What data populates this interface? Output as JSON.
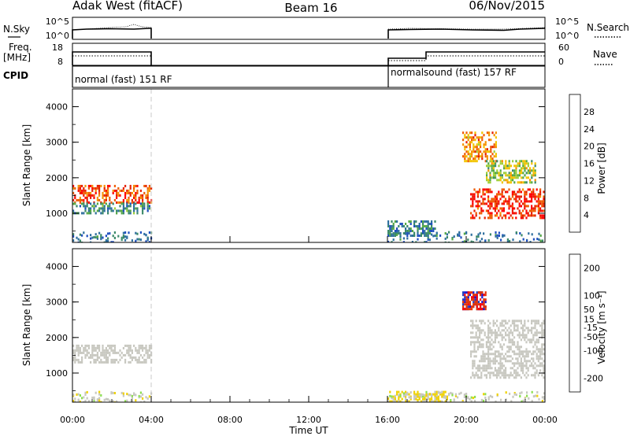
{
  "header": {
    "radar": "Adak West (fitACF)",
    "beam": "Beam 16",
    "date": "06/Nov/2015"
  },
  "top_panels": {
    "nsky_label": "N.Sky",
    "nsky_ticks": [
      "10^5",
      "10^0"
    ],
    "nsearch_label": "N.Search",
    "nsearch_ticks": [
      "10^5",
      "10^0"
    ],
    "freq_label_1": "Freq.",
    "freq_label_2": "[MHz]",
    "freq_ticks": [
      "18",
      "8"
    ],
    "nave_label": "Nave",
    "nave_ticks": [
      "60",
      "0"
    ],
    "cpid_label": "CPID",
    "cpid_1": "normal (fast) 151 RF",
    "cpid_2": "normalsound (fast) 157 RF"
  },
  "colors": {
    "power_scale": [
      "#0019ff",
      "#1f4fbf",
      "#2f6f9f",
      "#3c8a6a",
      "#55a845",
      "#9fcf3a",
      "#f2c400",
      "#f59200",
      "#ef5a00",
      "#e61e00",
      "#ff0000"
    ],
    "velocity_scale": [
      "#1414d2",
      "#1e3cbe",
      "#3c8246",
      "#5fbe3c",
      "#8ce050",
      "#c8c8c0",
      "#f0d200",
      "#f5a000",
      "#f06400",
      "#e63200",
      "#ff0000"
    ]
  },
  "chart_data": [
    {
      "type": "heatmap",
      "panel": "power",
      "ylabel": "Slant Range [km]",
      "colorbar_label": "Power [dB]",
      "x_ticks": [
        "00:00",
        "04:00",
        "08:00",
        "12:00",
        "16:00",
        "20:00",
        "00:00"
      ],
      "xlim_hours": [
        0,
        24
      ],
      "ylim_km": [
        180,
        4500
      ],
      "y_ticks": [
        "4000",
        "3000",
        "2000",
        "1000"
      ],
      "colorbar_ticks": [
        "28",
        "24",
        "20",
        "16",
        "12",
        "8",
        "4"
      ],
      "colorbar_range": [
        0,
        32
      ],
      "data_gaps": [
        [
          4,
          16
        ]
      ],
      "echo_regions": [
        {
          "t": [
            0,
            4
          ],
          "range_km": [
            1300,
            1800
          ],
          "value": 26
        },
        {
          "t": [
            0,
            4
          ],
          "range_km": [
            1000,
            1300
          ],
          "value": 10
        },
        {
          "t": [
            16,
            18.5
          ],
          "range_km": [
            400,
            800
          ],
          "value": 8
        },
        {
          "t": [
            20.2,
            24
          ],
          "range_km": [
            900,
            1700
          ],
          "value": 28
        },
        {
          "t": [
            19.8,
            21.5
          ],
          "range_km": [
            2500,
            3300
          ],
          "value": 22
        },
        {
          "t": [
            21,
            23.5
          ],
          "range_km": [
            1900,
            2500
          ],
          "value": 16
        }
      ]
    },
    {
      "type": "heatmap",
      "panel": "velocity",
      "ylabel": "Slant Range [km]",
      "colorbar_label": "Velocity [m s⁻¹]",
      "xlabel": "Time UT",
      "x_ticks": [
        "00:00",
        "04:00",
        "08:00",
        "12:00",
        "16:00",
        "20:00",
        "00:00"
      ],
      "xlim_hours": [
        0,
        24
      ],
      "ylim_km": [
        180,
        4500
      ],
      "y_ticks": [
        "4000",
        "3000",
        "2000",
        "1000"
      ],
      "colorbar_ticks": [
        "200",
        "100",
        "50",
        "15",
        "-15",
        "-50",
        "-100",
        "-200"
      ],
      "colorbar_range": [
        -250,
        250
      ],
      "data_gaps": [
        [
          4,
          16
        ]
      ],
      "echo_regions": [
        {
          "t": [
            0,
            4
          ],
          "range_km": [
            1300,
            1800
          ],
          "value": 0
        },
        {
          "t": [
            20.2,
            24
          ],
          "range_km": [
            900,
            2500
          ],
          "value": 0
        },
        {
          "t": [
            19.8,
            21
          ],
          "range_km": [
            2800,
            3300
          ],
          "value": -200
        },
        {
          "t": [
            19.8,
            21
          ],
          "range_km": [
            2800,
            3300
          ],
          "value": 200
        },
        {
          "t": [
            16,
            19
          ],
          "range_km": [
            200,
            500
          ],
          "value": 30
        }
      ]
    }
  ]
}
